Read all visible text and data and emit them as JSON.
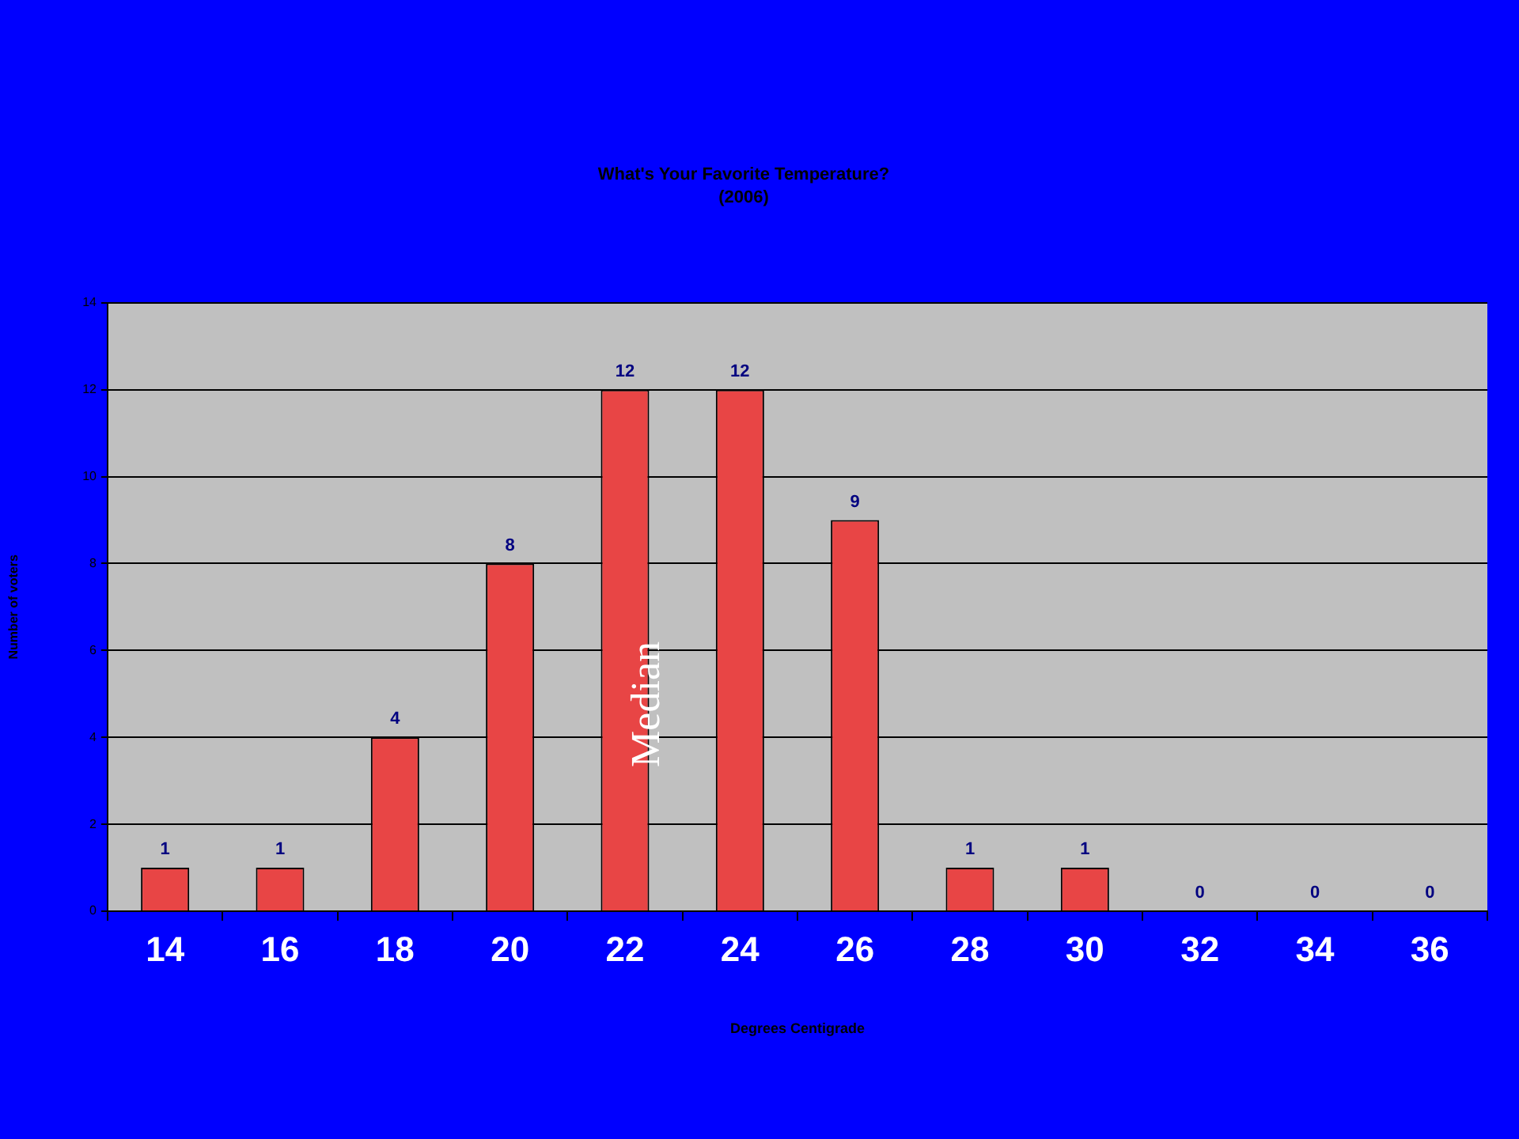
{
  "chart_data": {
    "type": "bar",
    "title": "What's Your Favorite Temperature?",
    "subtitle": "(2006)",
    "xlabel": "Degrees Centigrade",
    "ylabel": "Number of voters",
    "categories": [
      "14",
      "16",
      "18",
      "20",
      "22",
      "24",
      "26",
      "28",
      "30",
      "32",
      "34",
      "36"
    ],
    "values": [
      1,
      1,
      4,
      8,
      12,
      12,
      9,
      1,
      1,
      0,
      0,
      0
    ],
    "color": "#e84545",
    "ylim": [
      0,
      14
    ],
    "yticks": [
      0,
      2,
      4,
      6,
      8,
      10,
      12,
      14
    ],
    "grid": "y",
    "data_labels": true,
    "legend": false,
    "annotations": [
      "Median"
    ]
  }
}
